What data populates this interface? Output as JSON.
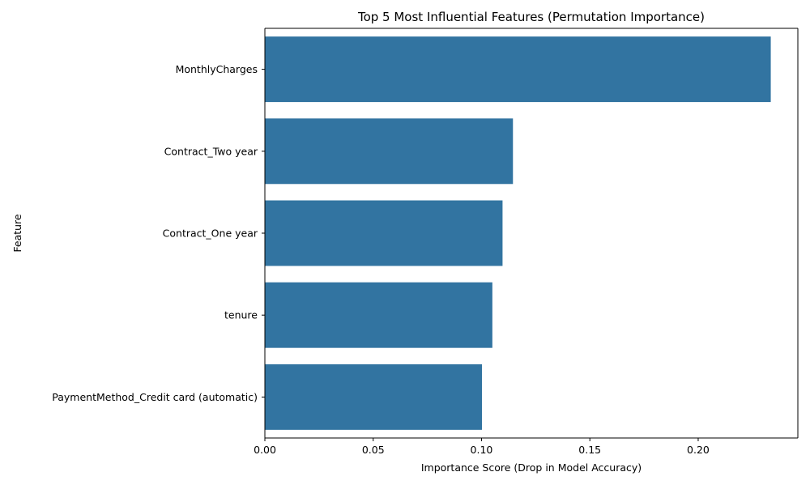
{
  "chart_data": {
    "type": "bar",
    "orientation": "horizontal",
    "title": "Top 5 Most Influential Features (Permutation Importance)",
    "xlabel": "Importance Score (Drop in Model Accuracy)",
    "ylabel": "Feature",
    "categories": [
      "MonthlyCharges",
      "Contract_Two year",
      "Contract_One year",
      "tenure",
      "PaymentMethod_Credit card (automatic)"
    ],
    "values": [
      0.2335,
      0.1145,
      0.1097,
      0.105,
      0.1002
    ],
    "xlim": [
      0,
      0.246
    ],
    "xticks": [
      0.0,
      0.05,
      0.1,
      0.15,
      0.2
    ],
    "xtick_labels": [
      "0.00",
      "0.05",
      "0.10",
      "0.15",
      "0.20"
    ],
    "grid": false,
    "legend": "none",
    "bar_color": "#3274a1"
  }
}
